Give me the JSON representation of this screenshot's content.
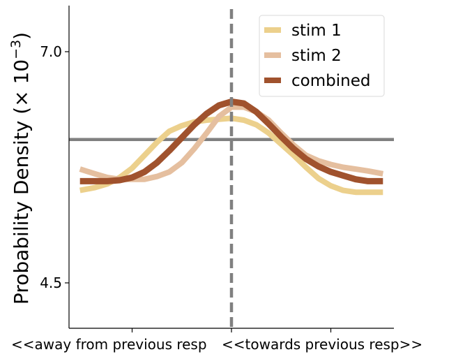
{
  "chart_data": {
    "type": "line",
    "title": "",
    "ylabel": "Probability Density (× 10",
    "ylabel_exp": "−3",
    "ylabel_close": ")",
    "xlabel_left": "<<away from previous resp",
    "xlabel_right": "<<towards previous resp>>",
    "ylim": [
      4.0,
      7.5
    ],
    "xlim": [
      -3.3,
      3.3
    ],
    "yticks": [
      {
        "value": 7.0,
        "label": "7.0"
      },
      {
        "value": 4.5,
        "label": "4.5"
      }
    ],
    "xticks": [
      -2,
      0,
      2
    ],
    "hline": 6.05,
    "vline": 0,
    "legend_position": "top-right",
    "series": [
      {
        "name": "stim 1",
        "color": "#ecd08c",
        "x": [
          -3.05,
          -2.75,
          -2.5,
          -2.25,
          -2.0,
          -1.75,
          -1.5,
          -1.25,
          -1.0,
          -0.75,
          -0.5,
          -0.25,
          0.0,
          0.25,
          0.5,
          0.75,
          1.0,
          1.25,
          1.5,
          1.75,
          2.0,
          2.25,
          2.5,
          2.75,
          3.05
        ],
        "values": [
          5.5,
          5.53,
          5.57,
          5.64,
          5.74,
          5.88,
          6.02,
          6.14,
          6.2,
          6.24,
          6.26,
          6.27,
          6.28,
          6.26,
          6.21,
          6.12,
          6.0,
          5.88,
          5.75,
          5.63,
          5.55,
          5.5,
          5.48,
          5.48,
          5.48
        ]
      },
      {
        "name": "stim 2",
        "color": "#e5bf9f",
        "x": [
          -3.05,
          -2.75,
          -2.5,
          -2.25,
          -2.0,
          -1.75,
          -1.5,
          -1.25,
          -1.0,
          -0.75,
          -0.5,
          -0.25,
          0.0,
          0.25,
          0.5,
          0.75,
          1.0,
          1.25,
          1.5,
          1.75,
          2.0,
          2.25,
          2.5,
          2.75,
          3.05
        ],
        "values": [
          5.73,
          5.68,
          5.64,
          5.62,
          5.62,
          5.62,
          5.65,
          5.7,
          5.8,
          5.95,
          6.12,
          6.3,
          6.4,
          6.4,
          6.35,
          6.26,
          6.12,
          5.99,
          5.88,
          5.82,
          5.78,
          5.75,
          5.73,
          5.71,
          5.68
        ]
      },
      {
        "name": "combined",
        "color": "#a0522d",
        "x": [
          -3.05,
          -2.75,
          -2.5,
          -2.25,
          -2.0,
          -1.75,
          -1.5,
          -1.25,
          -1.0,
          -0.75,
          -0.5,
          -0.25,
          0.0,
          0.25,
          0.5,
          0.75,
          1.0,
          1.25,
          1.5,
          1.75,
          2.0,
          2.25,
          2.5,
          2.75,
          3.05
        ],
        "values": [
          5.6,
          5.6,
          5.6,
          5.61,
          5.64,
          5.7,
          5.8,
          5.93,
          6.07,
          6.21,
          6.33,
          6.42,
          6.46,
          6.44,
          6.35,
          6.22,
          6.08,
          5.95,
          5.84,
          5.76,
          5.7,
          5.66,
          5.62,
          5.6,
          5.6
        ]
      }
    ]
  }
}
